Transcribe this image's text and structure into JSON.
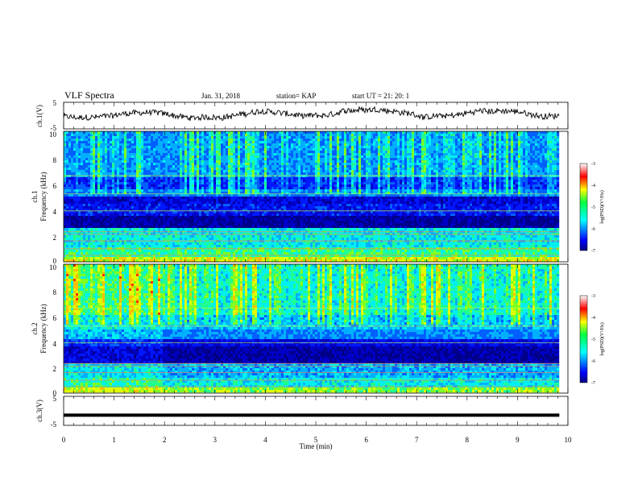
{
  "header": {
    "title": "VLF Spectra",
    "date": "Jan. 31, 2018",
    "station": "station= KAP",
    "start": "start  UT =   21: 20: 1"
  },
  "chart_data": [
    {
      "type": "line",
      "name": "ch1-waveform",
      "ylabel": "ch.1(V)",
      "ylim": [
        -5,
        5
      ],
      "yticks": [
        "5",
        "-5"
      ],
      "xlim": [
        0,
        9.83
      ]
    },
    {
      "type": "heatmap",
      "name": "ch1-spectrogram",
      "ylabel_1": "ch.1",
      "ylabel_2": "Frequency (kHz)",
      "ylim": [
        0,
        10
      ],
      "yticks": [
        "0",
        "2",
        "4",
        "6",
        "8",
        "10"
      ],
      "colorbar": {
        "label": "log(PSD)(V²/Hz)",
        "range": [
          -7,
          -3
        ],
        "ticks": [
          "-3",
          "-4",
          "-5",
          "-6",
          "-7"
        ]
      }
    },
    {
      "type": "heatmap",
      "name": "ch2-spectrogram",
      "ylabel_1": "ch.2",
      "ylabel_2": "Frequency (kHz)",
      "ylim": [
        0,
        10
      ],
      "yticks": [
        "0",
        "2",
        "4",
        "6",
        "8",
        "10"
      ],
      "colorbar": {
        "label": "log(PSD)(V²/Hz)",
        "range": [
          -7,
          -3
        ],
        "ticks": [
          "-3",
          "-4",
          "-5",
          "-6",
          "-7"
        ]
      }
    },
    {
      "type": "line",
      "name": "ch3-waveform",
      "ylabel": "ch.3(V)",
      "ylim": [
        -5,
        5
      ],
      "yticks": [
        "5",
        "-5"
      ],
      "constant_value": -1.5,
      "xlim": [
        0,
        9.83
      ]
    }
  ],
  "xaxis": {
    "label": "Time (min)",
    "ticks": [
      "0",
      "1",
      "2",
      "3",
      "4",
      "5",
      "6",
      "7",
      "8",
      "9",
      "10"
    ],
    "range": [
      0,
      10
    ]
  }
}
